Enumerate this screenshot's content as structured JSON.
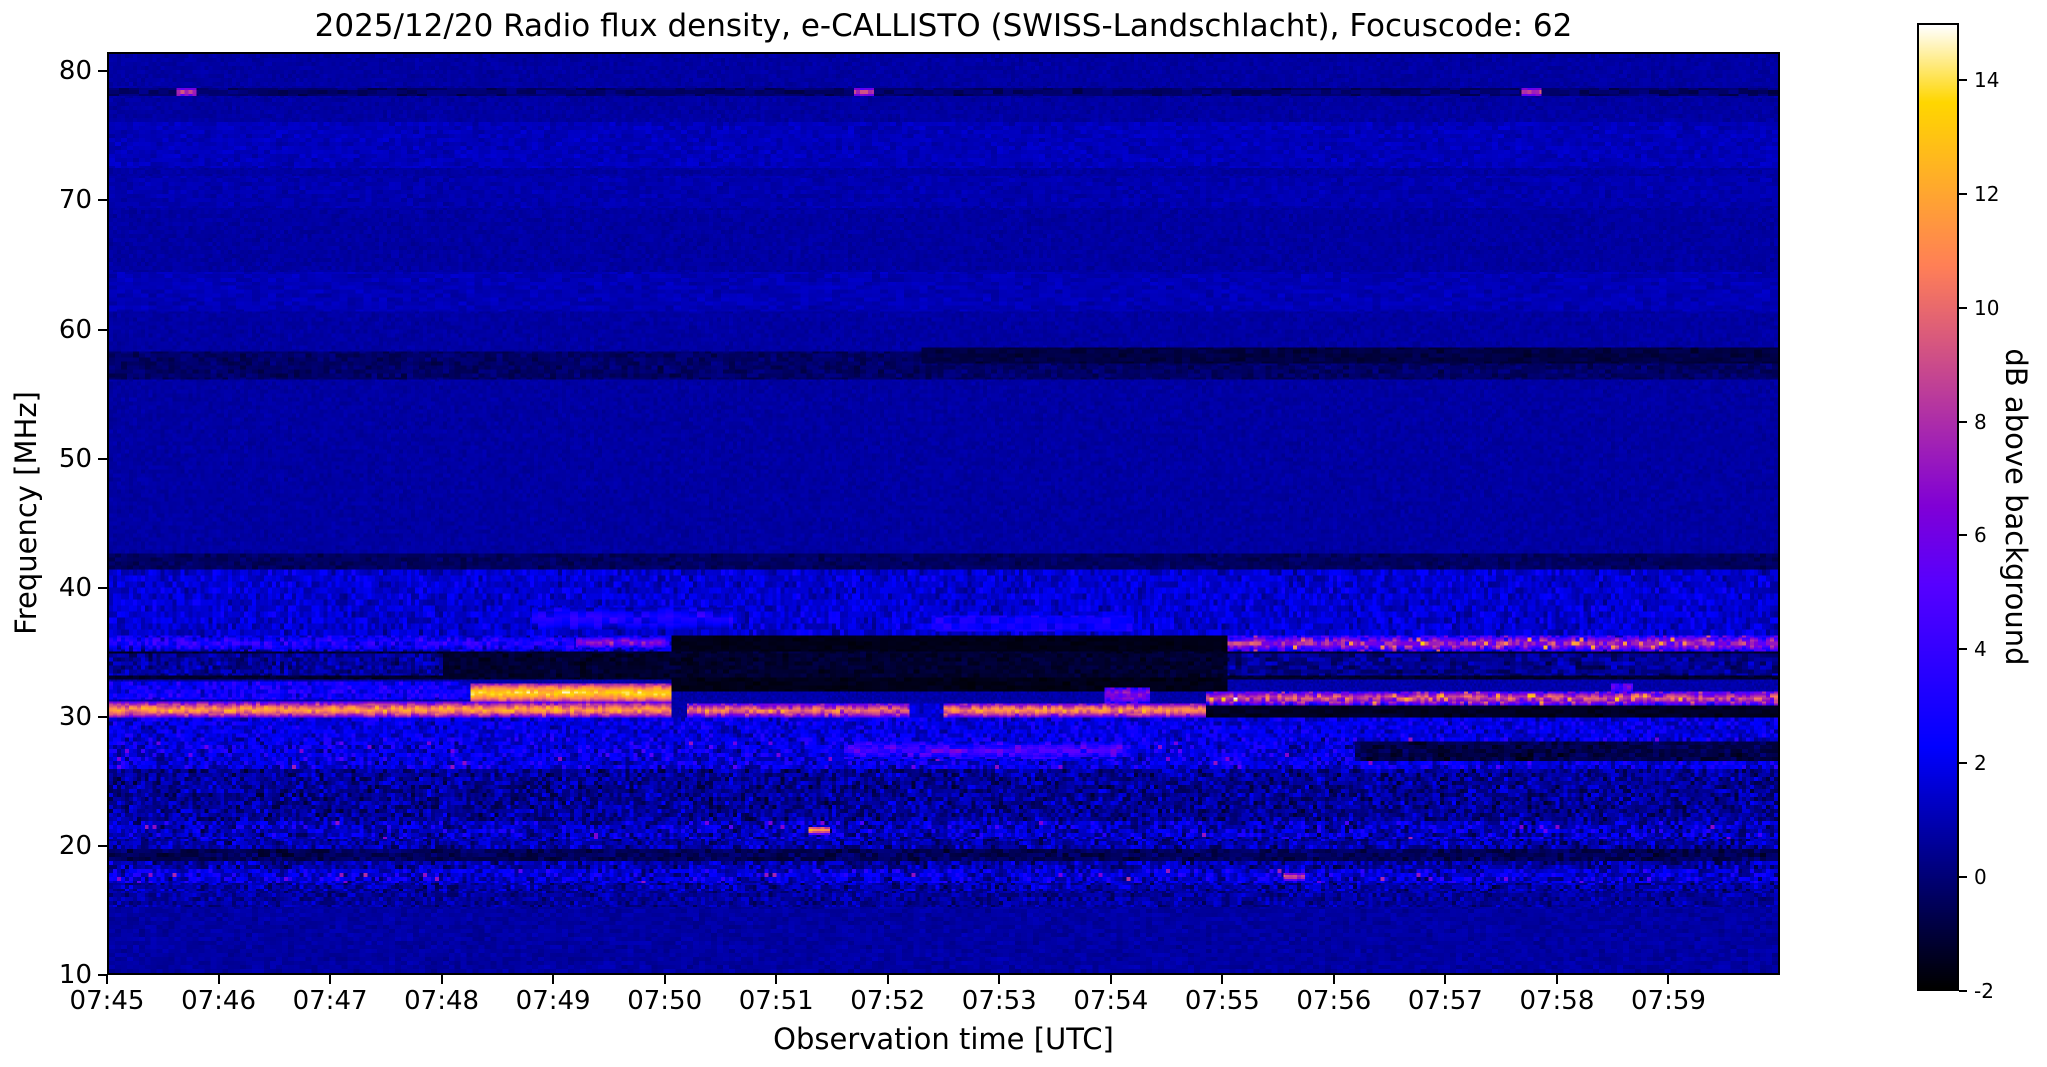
{
  "chart_data": {
    "type": "heatmap",
    "title": "2025/12/20  Radio flux density, e-CALLISTO (SWISS-Landschlacht), Focuscode: 62",
    "xlabel": "Observation time [UTC]",
    "ylabel": "Frequency [MHz]",
    "x_tick_labels": [
      "07:45",
      "07:46",
      "07:47",
      "07:48",
      "07:49",
      "07:50",
      "07:51",
      "07:52",
      "07:53",
      "07:54",
      "07:55",
      "07:56",
      "07:57",
      "07:58",
      "07:59"
    ],
    "x_tick_minutes": [
      0,
      1,
      2,
      3,
      4,
      5,
      6,
      7,
      8,
      9,
      10,
      11,
      12,
      13,
      14
    ],
    "x_range_minutes": [
      0,
      15
    ],
    "y_tick_values": [
      10,
      20,
      30,
      40,
      50,
      60,
      70,
      80
    ],
    "y_range_mhz": [
      10,
      81.5
    ],
    "colorbar": {
      "label": "dB above background",
      "tick_values": [
        -2,
        0,
        2,
        4,
        6,
        8,
        10,
        12,
        14
      ],
      "range_db": [
        -2,
        15
      ],
      "colormap": "gnuplot2"
    },
    "background_db": 0.8,
    "grid": false,
    "features": [
      {
        "name": "upper-smooth-region",
        "f": [
          42.6,
          81.5
        ],
        "t": [
          0,
          15
        ],
        "db": 0.7,
        "noise": 0.35,
        "cell": [
          2,
          2
        ]
      },
      {
        "name": "texture-band-74",
        "f": [
          72.6,
          76.2
        ],
        "t": [
          0,
          15
        ],
        "db": 1.1,
        "noise": 0.55,
        "cell": [
          3,
          2
        ]
      },
      {
        "name": "texture-band-70",
        "f": [
          69.5,
          72.0
        ],
        "t": [
          0,
          15
        ],
        "db": 0.9,
        "noise": 0.45,
        "cell": [
          3,
          2
        ]
      },
      {
        "name": "texture-band-63",
        "f": [
          61.4,
          64.6
        ],
        "t": [
          0,
          15
        ],
        "db": 1.0,
        "noise": 0.5,
        "cell": [
          4,
          2
        ]
      },
      {
        "name": "dark-band-57",
        "f": [
          56.2,
          58.4
        ],
        "t": [
          0,
          15
        ],
        "db": -0.3,
        "noise": 0.7,
        "cell": [
          3,
          2
        ]
      },
      {
        "name": "dark-band-58-late",
        "f": [
          57.4,
          58.6
        ],
        "t": [
          7.3,
          15
        ],
        "db": -0.9,
        "noise": 0.5,
        "cell": [
          4,
          2
        ]
      },
      {
        "name": "dashed-line-78",
        "f": [
          78.2,
          78.9
        ],
        "t": [
          0,
          15
        ],
        "db": -0.2,
        "noise": 0.8,
        "cell": [
          5,
          2
        ]
      },
      {
        "name": "bright-dot-78-a",
        "f": [
          78.2,
          78.9
        ],
        "t": [
          0.6,
          0.78
        ],
        "db": 9,
        "noise": 1.5
      },
      {
        "name": "bright-dot-78-b",
        "f": [
          78.2,
          78.9
        ],
        "t": [
          6.7,
          6.88
        ],
        "db": 9,
        "noise": 1.5
      },
      {
        "name": "bright-dot-78-c",
        "f": [
          78.2,
          78.9
        ],
        "t": [
          12.7,
          12.88
        ],
        "db": 9,
        "noise": 1.5
      },
      {
        "name": "noisy-band-36-41",
        "f": [
          36.3,
          41.4
        ],
        "t": [
          0,
          15
        ],
        "db": 1.5,
        "noise": 1.4,
        "cell": [
          2,
          3
        ]
      },
      {
        "name": "blue-wave-37-early",
        "f": [
          36.8,
          38.4
        ],
        "t": [
          3.8,
          5.6
        ],
        "db": 3.2,
        "noise": 1.6,
        "cell": [
          4,
          3
        ]
      },
      {
        "name": "blue-wave-37-mid",
        "f": [
          36.6,
          37.8
        ],
        "t": [
          7.4,
          9.2
        ],
        "db": 2.6,
        "noise": 1.4,
        "cell": [
          4,
          3
        ]
      },
      {
        "name": "dark-band-42",
        "f": [
          41.4,
          42.6
        ],
        "t": [
          0,
          15
        ],
        "db": -0.4,
        "noise": 0.6,
        "cell": [
          3,
          2
        ]
      },
      {
        "name": "row-35p6-early",
        "f": [
          35.1,
          36.3
        ],
        "t": [
          0,
          5.05
        ],
        "db": 3.2,
        "noise": 2.2,
        "cell": [
          2,
          2
        ]
      },
      {
        "name": "row-35p6-hotspot",
        "f": [
          35.3,
          36.1
        ],
        "t": [
          4.2,
          5.0
        ],
        "db": 6.5,
        "noise": 2.5,
        "cell": [
          2,
          2
        ]
      },
      {
        "name": "row-35p6-black-mid",
        "f": [
          34.8,
          36.3
        ],
        "t": [
          5.05,
          10.05
        ],
        "db": -1.6,
        "noise": 0.25,
        "cell": [
          4,
          2
        ]
      },
      {
        "name": "row-35p6-bright-late",
        "f": [
          35.1,
          36.2
        ],
        "t": [
          10.05,
          15
        ],
        "db": 7.5,
        "noise": 3.2,
        "cell": [
          2,
          2
        ],
        "sparkle": 0.05,
        "boost": 4
      },
      {
        "name": "black-band-33-35",
        "f": [
          32.9,
          35.1
        ],
        "t": [
          0,
          15
        ],
        "db": -1.2,
        "noise": 0.55,
        "cell": [
          3,
          2
        ]
      },
      {
        "name": "speckle-34-early",
        "f": [
          33.1,
          34.9
        ],
        "t": [
          0,
          3.0
        ],
        "db": 0.6,
        "noise": 1.6,
        "cell": [
          2,
          2
        ]
      },
      {
        "name": "speckle-34-late",
        "f": [
          33.2,
          34.8
        ],
        "t": [
          10.05,
          15
        ],
        "db": 0.4,
        "noise": 1.5,
        "cell": [
          3,
          2
        ]
      },
      {
        "name": "row-32-early",
        "f": [
          31.3,
          32.7
        ],
        "t": [
          0,
          3.25
        ],
        "db": 2.6,
        "noise": 2.0,
        "cell": [
          2,
          2
        ]
      },
      {
        "name": "white-saturated-blob",
        "f": [
          31.0,
          32.6
        ],
        "t": [
          3.25,
          5.05
        ],
        "db": 13.5,
        "noise": 1.5,
        "cell": [
          2,
          2
        ]
      },
      {
        "name": "black-32-mid",
        "f": [
          31.9,
          33.0
        ],
        "t": [
          5.05,
          10.05
        ],
        "db": -1.6,
        "noise": 0.3,
        "cell": [
          4,
          2
        ]
      },
      {
        "name": "bright-band-30-a",
        "f": [
          29.9,
          31.1
        ],
        "t": [
          0,
          5.05
        ],
        "db": 11.5,
        "noise": 2.0,
        "cell": [
          2,
          2
        ]
      },
      {
        "name": "bright-band-30-b",
        "f": [
          29.9,
          31.0
        ],
        "t": [
          5.2,
          7.2
        ],
        "db": 10.0,
        "noise": 2.6,
        "cell": [
          2,
          2
        ]
      },
      {
        "name": "band-30-gap",
        "f": [
          29.9,
          31.0
        ],
        "t": [
          7.2,
          7.5
        ],
        "db": 1.5,
        "noise": 1.2,
        "cell": [
          2,
          2
        ]
      },
      {
        "name": "bright-band-30-c",
        "f": [
          29.9,
          31.0
        ],
        "t": [
          7.5,
          9.85
        ],
        "db": 11.0,
        "noise": 2.2,
        "cell": [
          2,
          2
        ]
      },
      {
        "name": "flare-0754",
        "f": [
          31.0,
          32.3
        ],
        "t": [
          8.95,
          9.35
        ],
        "db": 7,
        "noise": 2.5,
        "cell": [
          2,
          2
        ]
      },
      {
        "name": "band-30-black-late",
        "f": [
          29.8,
          30.9
        ],
        "t": [
          9.85,
          15
        ],
        "db": -1.4,
        "noise": 0.4,
        "cell": [
          4,
          2
        ]
      },
      {
        "name": "bright-band-31p5-late",
        "f": [
          30.9,
          31.9
        ],
        "t": [
          9.85,
          15
        ],
        "db": 9.0,
        "noise": 3.2,
        "cell": [
          2,
          2
        ],
        "sparkle": 0.06,
        "boost": 4
      },
      {
        "name": "flare-0758",
        "f": [
          31.9,
          32.6
        ],
        "t": [
          13.5,
          13.7
        ],
        "db": 6,
        "noise": 2,
        "cell": [
          2,
          2
        ]
      },
      {
        "name": "purple-noise-29",
        "f": [
          28.3,
          29.9
        ],
        "t": [
          0,
          15
        ],
        "db": 1.8,
        "noise": 1.8,
        "cell": [
          2,
          2
        ]
      },
      {
        "name": "speckle-26-28",
        "f": [
          25.8,
          28.3
        ],
        "t": [
          0,
          15
        ],
        "db": 1.8,
        "noise": 2.2,
        "cell": [
          2,
          2
        ],
        "sparkle": 0.02,
        "boost": 4
      },
      {
        "name": "bright-27-mid",
        "f": [
          26.6,
          28.0
        ],
        "t": [
          6.6,
          9.1
        ],
        "db": 4.5,
        "noise": 2.6,
        "cell": [
          3,
          2
        ]
      },
      {
        "name": "dark-27-late",
        "f": [
          26.4,
          28.0
        ],
        "t": [
          11.2,
          15
        ],
        "db": -0.8,
        "noise": 1.0,
        "cell": [
          3,
          2
        ]
      },
      {
        "name": "speckle-22-26",
        "f": [
          21.8,
          25.8
        ],
        "t": [
          0,
          15
        ],
        "db": 0.5,
        "noise": 1.9,
        "cell": [
          2,
          2
        ]
      },
      {
        "name": "active-row-21",
        "f": [
          20.4,
          21.8
        ],
        "t": [
          0,
          15
        ],
        "db": 1.3,
        "noise": 2.4,
        "cell": [
          2,
          2
        ],
        "sparkle": 0.01,
        "boost": 5
      },
      {
        "name": "yellow-dot-21",
        "f": [
          20.8,
          21.4
        ],
        "t": [
          6.28,
          6.48
        ],
        "db": 12,
        "noise": 1.5
      },
      {
        "name": "speckle-16-20",
        "f": [
          15.2,
          20.4
        ],
        "t": [
          0,
          15
        ],
        "db": 0.8,
        "noise": 2.0,
        "cell": [
          2,
          2
        ]
      },
      {
        "name": "dark-row-19",
        "f": [
          18.7,
          19.6
        ],
        "t": [
          0,
          15
        ],
        "db": -0.5,
        "noise": 1.0,
        "cell": [
          3,
          2
        ]
      },
      {
        "name": "active-row-17p5",
        "f": [
          17.0,
          18.1
        ],
        "t": [
          0,
          15
        ],
        "db": 1.6,
        "noise": 2.3,
        "cell": [
          2,
          2
        ],
        "sparkle": 0.015,
        "boost": 5
      },
      {
        "name": "orange-dot-17",
        "f": [
          17.2,
          17.8
        ],
        "t": [
          10.55,
          10.75
        ],
        "db": 9,
        "noise": 1.5
      },
      {
        "name": "low-smooth-region",
        "f": [
          10,
          15.2
        ],
        "t": [
          0,
          15
        ],
        "db": 0.7,
        "noise": 0.5,
        "cell": [
          3,
          2
        ]
      },
      {
        "name": "row-15p6",
        "f": [
          15.2,
          16.3
        ],
        "t": [
          0,
          15
        ],
        "db": 0.6,
        "noise": 1.4,
        "cell": [
          2,
          2
        ]
      }
    ]
  }
}
